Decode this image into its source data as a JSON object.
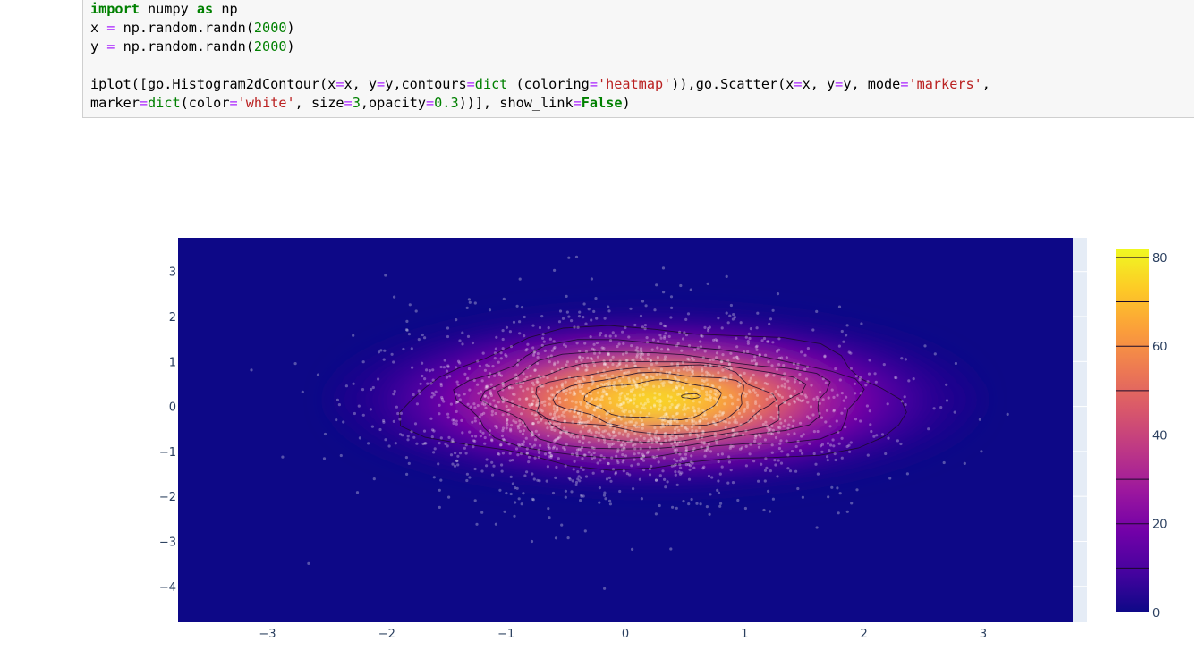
{
  "notebook": {
    "code_lines": [
      [
        {
          "t": "import",
          "c": "kw"
        },
        {
          "t": " numpy ",
          "c": ""
        },
        {
          "t": "as",
          "c": "kw"
        },
        {
          "t": " np",
          "c": ""
        }
      ],
      [
        {
          "t": "x ",
          "c": ""
        },
        {
          "t": "=",
          "c": "op"
        },
        {
          "t": " np.random.randn(",
          "c": ""
        },
        {
          "t": "2000",
          "c": "num"
        },
        {
          "t": ")",
          "c": ""
        }
      ],
      [
        {
          "t": "y ",
          "c": ""
        },
        {
          "t": "=",
          "c": "op"
        },
        {
          "t": " np.random.randn(",
          "c": ""
        },
        {
          "t": "2000",
          "c": "num"
        },
        {
          "t": ")",
          "c": ""
        }
      ],
      [],
      [
        {
          "t": "iplot([go.Histogram2dContour(x",
          "c": ""
        },
        {
          "t": "=",
          "c": "op"
        },
        {
          "t": "x, y",
          "c": ""
        },
        {
          "t": "=",
          "c": "op"
        },
        {
          "t": "y,contours",
          "c": ""
        },
        {
          "t": "=",
          "c": "op"
        },
        {
          "t": "dict",
          "c": "bi"
        },
        {
          "t": " (coloring",
          "c": ""
        },
        {
          "t": "=",
          "c": "op"
        },
        {
          "t": "'heatmap'",
          "c": "str"
        },
        {
          "t": ")),go.Scatter(x",
          "c": ""
        },
        {
          "t": "=",
          "c": "op"
        },
        {
          "t": "x, y",
          "c": ""
        },
        {
          "t": "=",
          "c": "op"
        },
        {
          "t": "y, mode",
          "c": ""
        },
        {
          "t": "=",
          "c": "op"
        },
        {
          "t": "'markers'",
          "c": "str"
        },
        {
          "t": ",",
          "c": ""
        }
      ],
      [
        {
          "t": "marker",
          "c": ""
        },
        {
          "t": "=",
          "c": "op"
        },
        {
          "t": "dict",
          "c": "bi"
        },
        {
          "t": "(color",
          "c": ""
        },
        {
          "t": "=",
          "c": "op"
        },
        {
          "t": "'white'",
          "c": "str"
        },
        {
          "t": ", size",
          "c": ""
        },
        {
          "t": "=",
          "c": "op"
        },
        {
          "t": "3",
          "c": "num"
        },
        {
          "t": ",opacity",
          "c": ""
        },
        {
          "t": "=",
          "c": "op"
        },
        {
          "t": "0.3",
          "c": "num"
        },
        {
          "t": "))], show_link",
          "c": ""
        },
        {
          "t": "=",
          "c": "op"
        },
        {
          "t": "False",
          "c": "kwc"
        },
        {
          "t": ")",
          "c": ""
        }
      ]
    ]
  },
  "colors": {
    "plot_bg": "#0d0887",
    "gridline": "#e5ecf6",
    "tick_text": "#2a3f5f",
    "scale": [
      "#0d0887",
      "#46039f",
      "#7201a8",
      "#9c179e",
      "#bd3786",
      "#d8576b",
      "#ed7953",
      "#fb9f3a",
      "#fdca26",
      "#f0f921"
    ]
  },
  "chart_data": {
    "type": "heatmap",
    "subtype": "histogram2dcontour + scatter markers",
    "x": {
      "range": [
        -3.75,
        3.75
      ],
      "ticks": [
        -3,
        -2,
        -1,
        0,
        1,
        2,
        3
      ],
      "tick_labels": [
        "−3",
        "−2",
        "−1",
        "0",
        "1",
        "2",
        "3"
      ]
    },
    "y": {
      "range": [
        -4.8,
        3.75
      ],
      "ticks": [
        3,
        2,
        1,
        0,
        -1,
        -2,
        -3,
        -4
      ],
      "tick_labels": [
        "3",
        "2",
        "1",
        "0",
        "−1",
        "−2",
        "−3",
        "−4"
      ]
    },
    "density": {
      "peak_center": [
        0.25,
        0.15
      ],
      "sigma": [
        1.0,
        0.75
      ],
      "max_count": 82
    },
    "contour_levels": [
      10,
      20,
      30,
      40,
      50,
      60,
      70,
      80
    ],
    "markers": {
      "n": 2000,
      "color": "white",
      "size": 3,
      "opacity": 0.3
    },
    "colorbar": {
      "range": [
        0,
        82
      ],
      "ticks": [
        0,
        20,
        40,
        60,
        80
      ],
      "tick_labels": [
        "0",
        "20",
        "40",
        "60",
        "80"
      ]
    },
    "grid": "on",
    "legend": "none"
  }
}
